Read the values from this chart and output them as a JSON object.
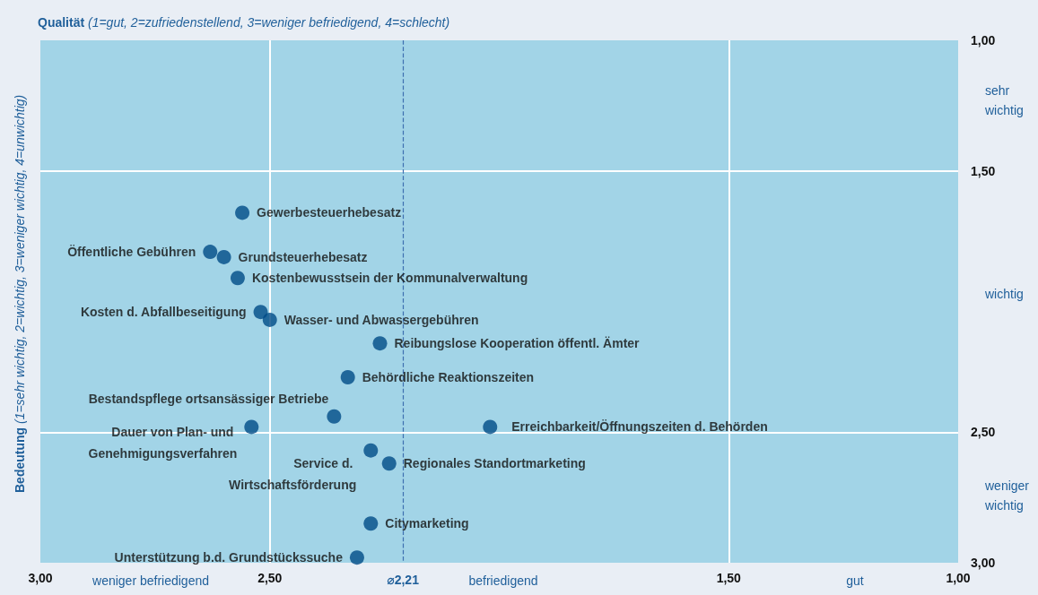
{
  "chart_data": {
    "type": "scatter",
    "xlabel": "Qualität (1=gut, 2=zufriedenstellend, 3=weniger befriedigend, 4=schlecht)",
    "ylabel": "Bedeutung (1=sehr wichtig, 2=wichtig, 3=weniger wichtig, 4=unwichtig)",
    "xlim": [
      3,
      1
    ],
    "ylim": [
      3,
      1
    ],
    "xticks": [
      {
        "value": 3,
        "label": "3,00"
      },
      {
        "value": 2.5,
        "label": "2,50"
      },
      {
        "value": 1.5,
        "label": "1,50"
      },
      {
        "value": 1,
        "label": "1,00"
      }
    ],
    "yticks": [
      {
        "value": 1,
        "label": "1,00"
      },
      {
        "value": 1.5,
        "label": "1,50"
      },
      {
        "value": 2.5,
        "label": "2,50"
      },
      {
        "value": 3,
        "label": "3,00"
      }
    ],
    "grid": true,
    "legend": false,
    "marker": "circle",
    "ref_lines": [
      {
        "axis": "x",
        "value": 2.21,
        "label": "⌀2,21",
        "color": "#3d6fb0",
        "line_style": "dashed"
      }
    ],
    "annotations": [
      "weniger befriedigend",
      "befriedigend",
      "gut",
      "sehr wichtig",
      "wichtig",
      "weniger wichtig"
    ],
    "series": [
      {
        "name": "Gewerbesteuerhebesatz",
        "color": "#004b87",
        "x": [
          2.56
        ],
        "values": [
          1.66
        ]
      },
      {
        "name": "Öffentliche Gebühren",
        "color": "#004b87",
        "x": [
          2.63
        ],
        "values": [
          1.81
        ]
      },
      {
        "name": "Grundsteuerhebesatz",
        "color": "#004b87",
        "x": [
          2.6
        ],
        "values": [
          1.83
        ]
      },
      {
        "name": "Kostenbewusstsein der Kommunalverwaltung",
        "color": "#004b87",
        "x": [
          2.57
        ],
        "values": [
          1.91
        ]
      },
      {
        "name": "Kosten d. Abfallbeseitigung",
        "color": "#004b87",
        "x": [
          2.52
        ],
        "values": [
          2.04
        ]
      },
      {
        "name": "Wasser- und Abwassergebühren",
        "color": "#004b87",
        "x": [
          2.5
        ],
        "values": [
          2.07
        ]
      },
      {
        "name": "Reibungslose Kooperation öffentl. Ämter",
        "color": "#004b87",
        "x": [
          2.26
        ],
        "values": [
          2.16
        ]
      },
      {
        "name": "Behördliche Reaktionszeiten",
        "color": "#004b87",
        "x": [
          2.33
        ],
        "values": [
          2.29
        ]
      },
      {
        "name": "Bestandspflege ortsansässiger Betriebe",
        "color": "#004b87",
        "x": [
          2.36
        ],
        "values": [
          2.44
        ]
      },
      {
        "name": "Dauer von Plan- und Genehmigungsverfahren",
        "color": "#004b87",
        "x": [
          2.54
        ],
        "values": [
          2.48
        ]
      },
      {
        "name": "Erreichbarkeit/Öffnungszeiten d. Behörden",
        "color": "#004b87",
        "x": [
          2.02
        ],
        "values": [
          2.48
        ]
      },
      {
        "name": "Service d. Wirtschaftsförderung",
        "color": "#004b87",
        "x": [
          2.28
        ],
        "values": [
          2.57
        ]
      },
      {
        "name": "Regionales Standortmarketing",
        "color": "#004b87",
        "x": [
          2.24
        ],
        "values": [
          2.62
        ]
      },
      {
        "name": "Citymarketing",
        "color": "#004b87",
        "x": [
          2.28
        ],
        "values": [
          2.85
        ]
      },
      {
        "name": "Unterstützung b.d. Grundstückssuche",
        "color": "#004b87",
        "x": [
          2.31
        ],
        "values": [
          2.98
        ]
      }
    ]
  }
}
